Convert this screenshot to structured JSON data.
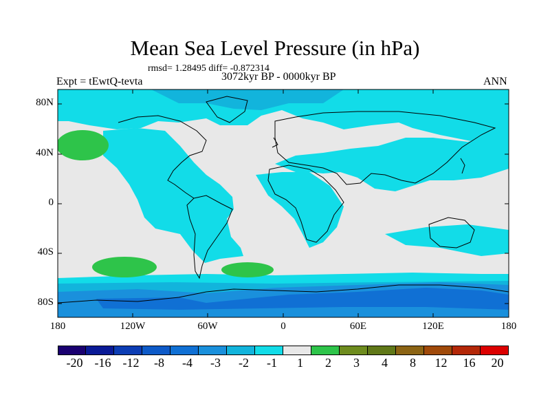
{
  "title": "Mean Sea Level Pressure (in hPa)",
  "stats": "rmsd= 1.28495 diff= -0.872314",
  "experiment": "Expt = tEwtQ-tevta",
  "period": "3072kyr BP - 0000kyr BP",
  "season": "ANN",
  "lat_ticks": [
    "80N",
    "40N",
    "0",
    "40S",
    "80S"
  ],
  "lon_ticks": [
    "180",
    "120W",
    "60W",
    "0",
    "60E",
    "120E",
    "180"
  ],
  "colorbar": {
    "colors": [
      "#1a0070",
      "#0a1a96",
      "#0c3db4",
      "#0d5ac8",
      "#1070d4",
      "#1a90dc",
      "#12b4dc",
      "#12dce8",
      "#e8e8e8",
      "#2ec44a",
      "#6e8c1e",
      "#607818",
      "#8c6414",
      "#a04a0a",
      "#b42808",
      "#dc0000"
    ],
    "labels": [
      "-20",
      "-16",
      "-12",
      "-8",
      "-4",
      "-3",
      "-2",
      "-1",
      "1",
      "2",
      "3",
      "4",
      "8",
      "12",
      "16",
      "20"
    ]
  },
  "palette": {
    "neutral": "#e8e8e8",
    "minus1": "#12dce8",
    "minus2": "#12b4dc",
    "minus3": "#1a90dc",
    "minus4": "#1070d4",
    "plus1": "#2ec44a"
  }
}
